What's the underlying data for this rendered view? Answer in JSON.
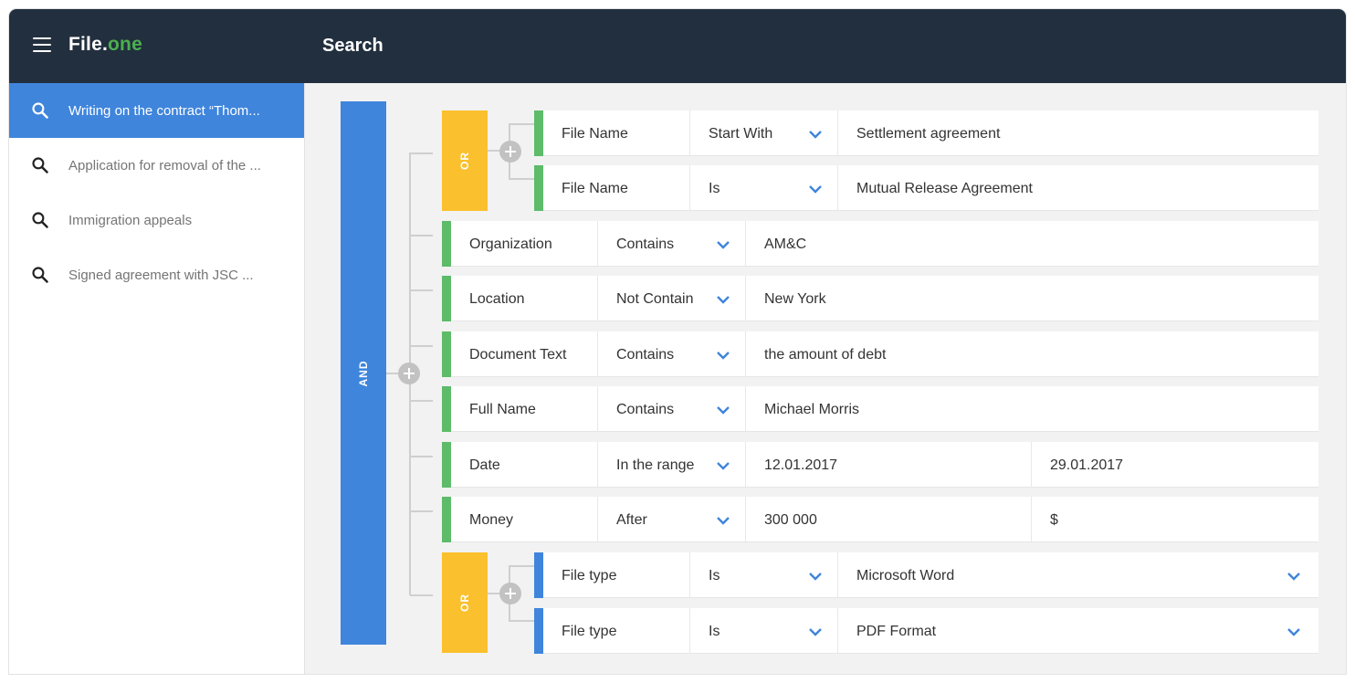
{
  "header": {
    "logo_main": "File.",
    "logo_accent": "one",
    "title": "Search"
  },
  "sidebar": {
    "items": [
      {
        "label": "Writing on the contract “Thom...",
        "active": true
      },
      {
        "label": "Application for removal of the ...",
        "active": false
      },
      {
        "label": "Immigration appeals",
        "active": false
      },
      {
        "label": "Signed agreement with JSC ...",
        "active": false
      }
    ]
  },
  "query": {
    "root_operator": "AND",
    "group1": {
      "operator": "OR",
      "conditions": [
        {
          "field": "File Name",
          "operator": "Start With",
          "value": "Settlement agreement"
        },
        {
          "field": "File Name",
          "operator": "Is",
          "value": "Mutual Release Agreement"
        }
      ]
    },
    "conditions": [
      {
        "field": "Organization",
        "operator": "Contains",
        "value": "AM&C"
      },
      {
        "field": "Location",
        "operator": "Not Contain",
        "value": "New York"
      },
      {
        "field": "Document Text",
        "operator": "Contains",
        "value": "the amount of debt"
      },
      {
        "field": "Full Name",
        "operator": "Contains",
        "value": "Michael Morris"
      },
      {
        "field": "Date",
        "operator": "In the range",
        "value": "12.01.2017",
        "value2": "29.01.2017"
      },
      {
        "field": "Money",
        "operator": "After",
        "value": "300 000",
        "value2": "$"
      }
    ],
    "group2": {
      "operator": "OR",
      "conditions": [
        {
          "field": "File type",
          "operator": "Is",
          "value": "Microsoft Word"
        },
        {
          "field": "File type",
          "operator": "Is",
          "value": "PDF Format"
        }
      ]
    }
  },
  "colors": {
    "header_bg": "#222f3e",
    "accent_blue": "#3f85dc",
    "accent_green": "#5dbb6a",
    "or_yellow": "#fbc02d",
    "logo_green": "#4caf50"
  },
  "icons": {
    "menu": "hamburger-menu-icon",
    "search": "search-icon",
    "add": "plus-circle-icon",
    "dropdown": "chevron-down-icon"
  }
}
